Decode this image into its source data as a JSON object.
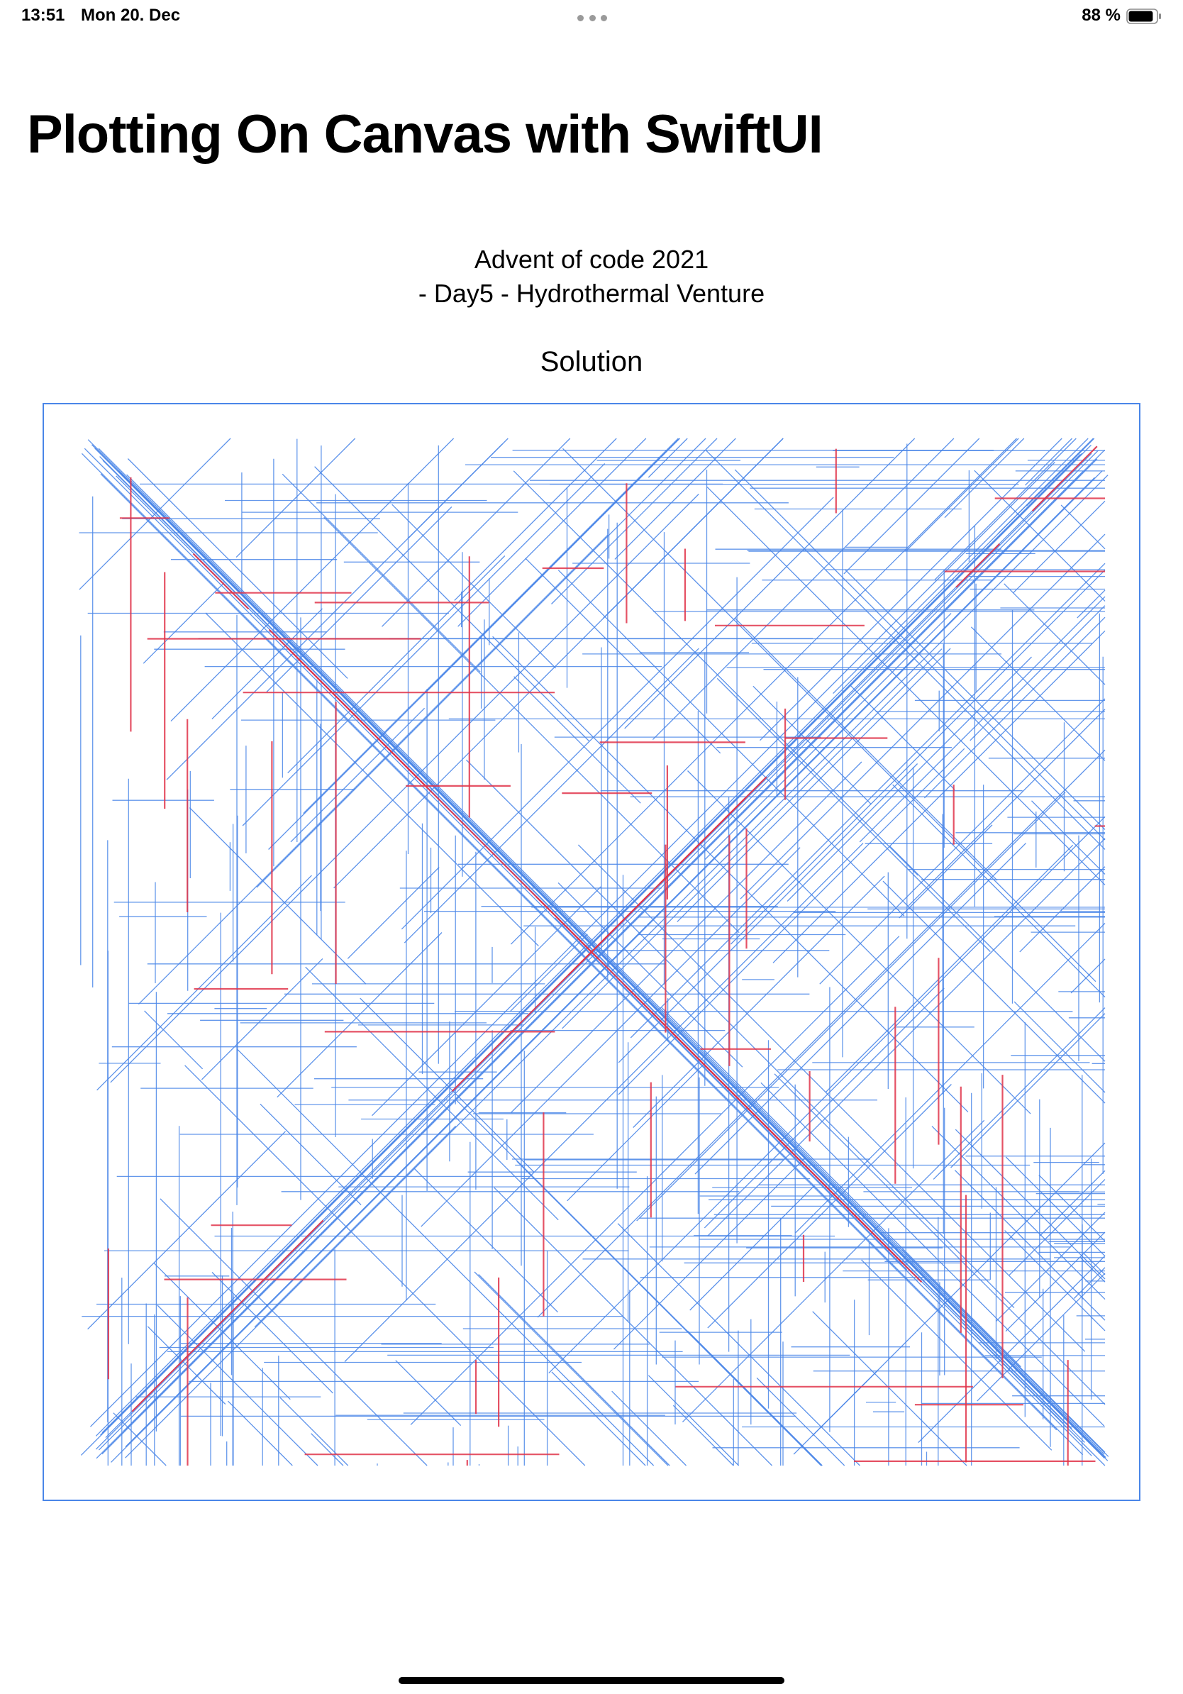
{
  "status_bar": {
    "time": "13:51",
    "date": "Mon 20. Dec",
    "battery_percent": "88 %",
    "battery_level": 0.88
  },
  "page": {
    "title": "Plotting On Canvas with SwiftUI",
    "subtitle_line1": "Advent of code 2021",
    "subtitle_line2": "- Day5 - Hydrothermal Venture",
    "section_title": "Solution"
  },
  "canvas": {
    "colors": {
      "border": "#4a86e8",
      "line": "#4a86e8",
      "overlap": "#e0344a"
    },
    "line_width": 1.3,
    "overlap_line_width": 2.2,
    "random_seed": 2021,
    "vent_line_count": 500,
    "line_kinds": [
      "horizontal",
      "vertical",
      "diagonal"
    ]
  }
}
